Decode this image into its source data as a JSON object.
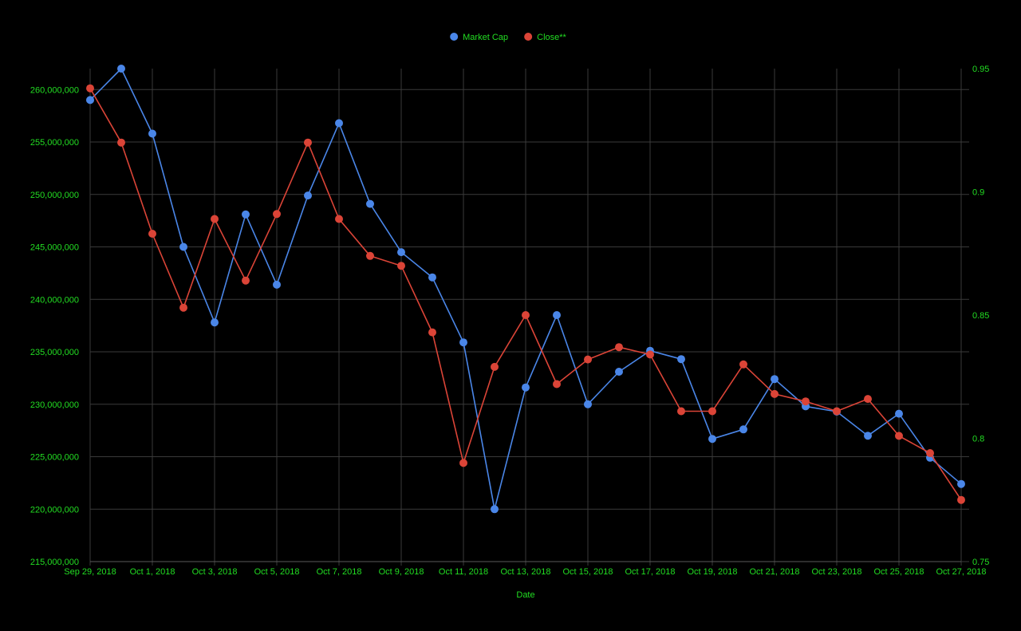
{
  "chart_data": {
    "type": "line",
    "title": "",
    "xlabel": "Date",
    "ylabel": "",
    "y2label": "",
    "legend_position": "top-center",
    "grid": true,
    "colors": {
      "background": "#000000",
      "text": "#22dd22",
      "grid": "#3a3a3a",
      "market_cap": "#4a86e8",
      "close": "#db4437"
    },
    "x": [
      "2018-09-29",
      "2018-09-30",
      "2018-10-01",
      "2018-10-02",
      "2018-10-03",
      "2018-10-04",
      "2018-10-05",
      "2018-10-06",
      "2018-10-07",
      "2018-10-08",
      "2018-10-09",
      "2018-10-10",
      "2018-10-11",
      "2018-10-12",
      "2018-10-13",
      "2018-10-14",
      "2018-10-15",
      "2018-10-16",
      "2018-10-17",
      "2018-10-18",
      "2018-10-19",
      "2018-10-20",
      "2018-10-21",
      "2018-10-22",
      "2018-10-23",
      "2018-10-24",
      "2018-10-25",
      "2018-10-26",
      "2018-10-27"
    ],
    "x_ticks": [
      "Sep 29, 2018",
      "Oct 1, 2018",
      "Oct 3, 2018",
      "Oct 5, 2018",
      "Oct 7, 2018",
      "Oct 9, 2018",
      "Oct 11, 2018",
      "Oct 13, 2018",
      "Oct 15, 2018",
      "Oct 17, 2018",
      "Oct 19, 2018",
      "Oct 21, 2018",
      "Oct 23, 2018",
      "Oct 25, 2018",
      "Oct 27, 2018"
    ],
    "y_left": {
      "min": 215000000,
      "max": 262000000,
      "ticks": [
        215000000,
        220000000,
        225000000,
        230000000,
        235000000,
        240000000,
        245000000,
        250000000,
        255000000,
        260000000
      ],
      "tick_labels": [
        "215,000,000",
        "220,000,000",
        "225,000,000",
        "230,000,000",
        "235,000,000",
        "240,000,000",
        "245,000,000",
        "250,000,000",
        "255,000,000",
        "260,000,000"
      ]
    },
    "y_right": {
      "min": 0.75,
      "max": 0.95,
      "ticks": [
        0.75,
        0.8,
        0.85,
        0.9,
        0.95
      ],
      "tick_labels": [
        "0.75",
        "0.8",
        "0.85",
        "0.9",
        "0.95"
      ]
    },
    "series": [
      {
        "name": "Market Cap",
        "axis": "left",
        "color_key": "market_cap",
        "values": [
          259000000,
          262000000,
          255800000,
          245000000,
          237800000,
          248100000,
          241400000,
          249900000,
          256800000,
          249100000,
          244500000,
          242100000,
          235900000,
          220000000,
          231600000,
          238500000,
          230000000,
          233100000,
          235100000,
          234300000,
          226700000,
          227600000,
          232400000,
          229800000,
          229300000,
          227000000,
          229100000,
          224900000,
          222400000
        ]
      },
      {
        "name": "Close**",
        "axis": "right",
        "color_key": "close",
        "values": [
          0.942,
          0.92,
          0.883,
          0.853,
          0.889,
          0.864,
          0.891,
          0.92,
          0.889,
          0.874,
          0.87,
          0.843,
          0.79,
          0.829,
          0.85,
          0.822,
          0.832,
          0.837,
          0.834,
          0.811,
          0.811,
          0.83,
          0.818,
          0.815,
          0.811,
          0.816,
          0.801,
          0.794,
          0.775
        ]
      }
    ]
  }
}
